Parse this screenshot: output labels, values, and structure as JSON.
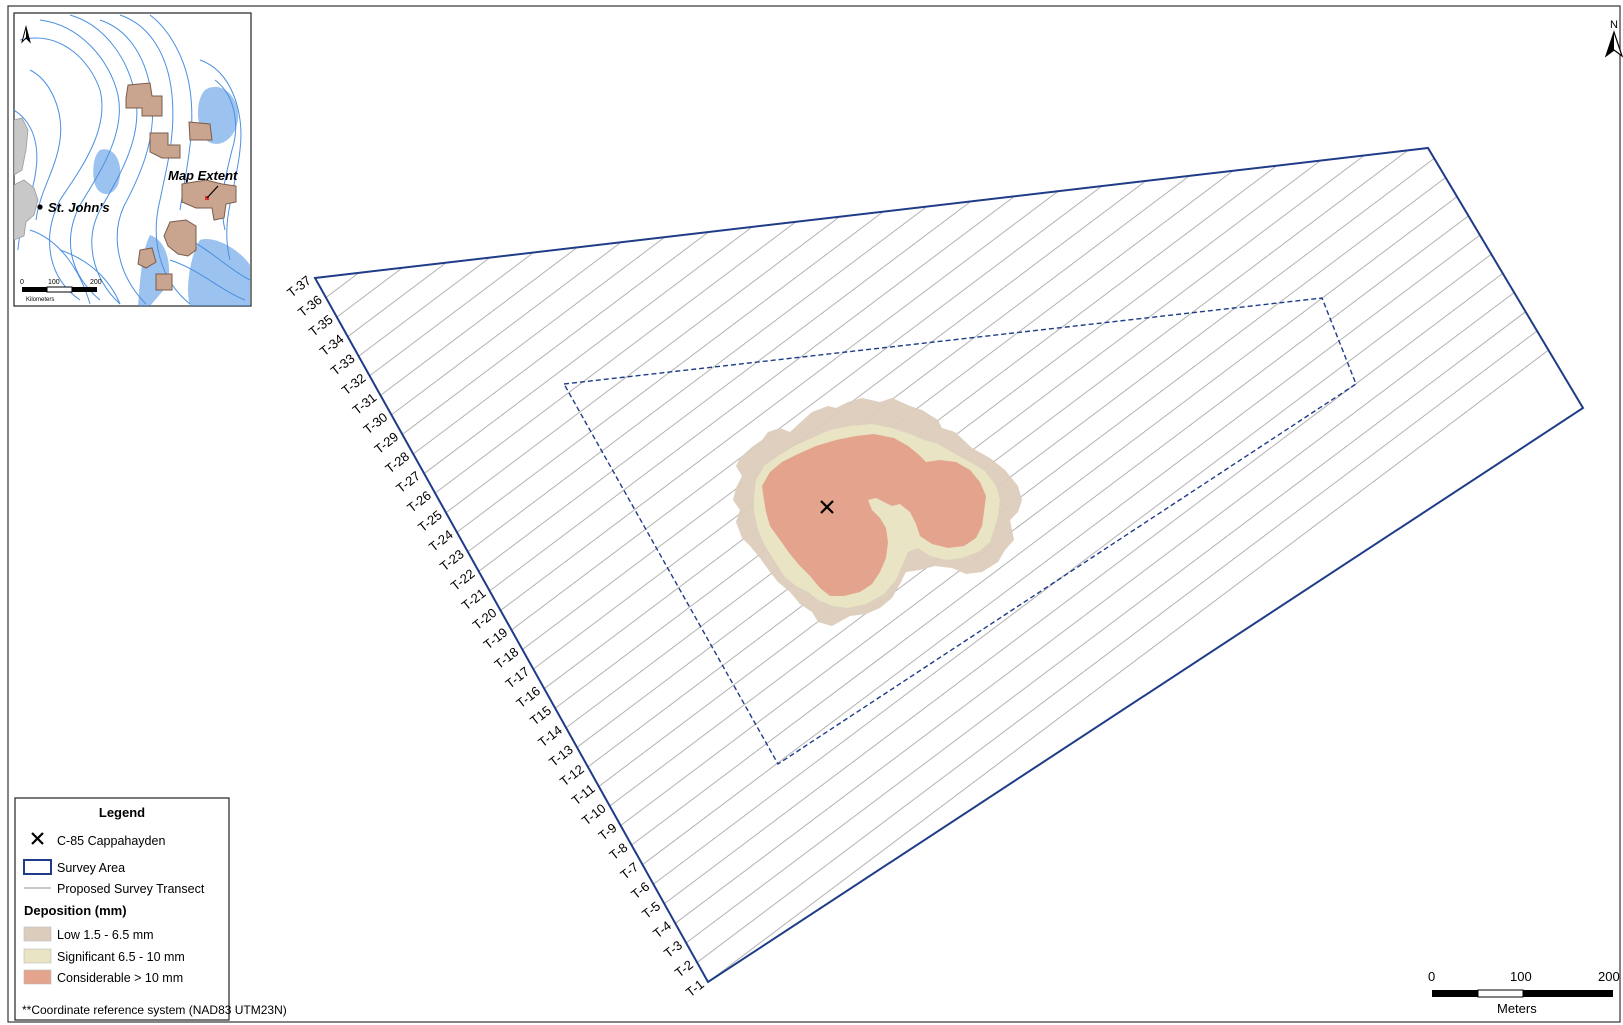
{
  "inset": {
    "city_label": "St. John's",
    "extent_label": "Map Extent",
    "scale_ticks": [
      "0",
      "100",
      "200"
    ],
    "scale_unit": "Kilometers"
  },
  "north_arrow": {
    "label": "N"
  },
  "well": {
    "label": "C-85 Cappahayden"
  },
  "transects": [
    "T-1",
    "T-2",
    "T-3",
    "T-4",
    "T-5",
    "T-6",
    "T-7",
    "T-8",
    "T-9",
    "T-10",
    "T-11",
    "T-12",
    "T-13",
    "T-14",
    "T15",
    "T-16",
    "T-17",
    "T-18",
    "T-19",
    "T-20",
    "T-21",
    "T-22",
    "T-23",
    "T-24",
    "T-25",
    "T-26",
    "T-27",
    "T-28",
    "T-29",
    "T-30",
    "T-31",
    "T-32",
    "T-33",
    "T-34",
    "T-35",
    "T-36",
    "T-37"
  ],
  "legend": {
    "title": "Legend",
    "items": [
      {
        "label": "C-85 Cappahayden",
        "symbol": "x-icon"
      },
      {
        "label": "Survey Area",
        "symbol": "survey-area-swatch",
        "color": "#1f3c88"
      },
      {
        "label": "Proposed Survey Transect",
        "symbol": "transect-line-swatch",
        "color": "#b3b3b3"
      }
    ],
    "deposition_title": "Deposition (mm)",
    "deposition": [
      {
        "label": "Low 1.5 - 6.5 mm",
        "color": "#dcccbc"
      },
      {
        "label": "Significant 6.5 - 10 mm",
        "color": "#e8e4c4"
      },
      {
        "label": "Considerable > 10 mm",
        "color": "#e4a38c"
      }
    ]
  },
  "crs_note": "**Coordinate reference system (NAD83 UTM23N)",
  "scale_bar": {
    "ticks": [
      "0",
      "100",
      "200"
    ],
    "unit": "Meters"
  },
  "colors": {
    "survey_area": "#1f3c88",
    "transect": "#b3b3b3",
    "bathymetry": "#4a90e2",
    "lease_blocks": "#c9a48f"
  }
}
